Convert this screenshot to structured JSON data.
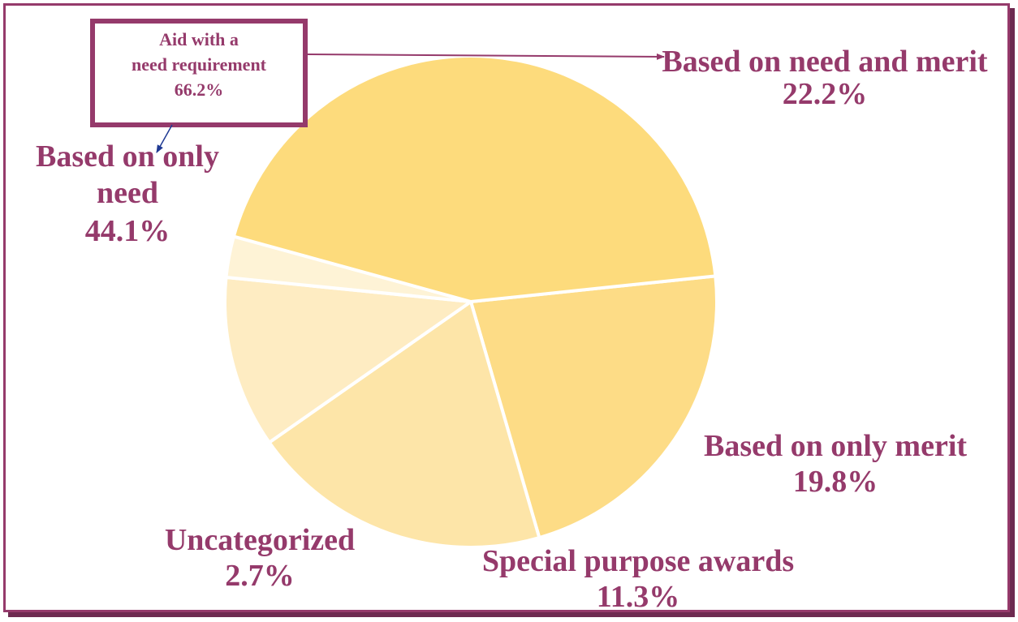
{
  "colors": {
    "frame": "#953a6b",
    "label": "#953a6b",
    "arrow_blue": "#1f3a93",
    "slice_need_merit": "#fddc86",
    "slice_merit": "#fde5a8",
    "slice_special": "#feecc2",
    "slice_uncat": "#fef3d6",
    "slice_need_only": "#fddb7c"
  },
  "chart_data": {
    "type": "pie",
    "slices": [
      {
        "name": "Based on need and merit",
        "value": 22.2,
        "label_value": "22.2%",
        "color": "#fddc86"
      },
      {
        "name": "Based on only merit",
        "value": 19.8,
        "label_value": "19.8%",
        "color": "#fde5a8"
      },
      {
        "name": "Special purpose awards",
        "value": 11.3,
        "label_value": "11.3%",
        "color": "#feecc2"
      },
      {
        "name": "Uncategorized",
        "value": 2.7,
        "label_value": "2.7%",
        "color": "#fef3d6"
      },
      {
        "name": "Based on only need",
        "value": 44.1,
        "label_value": "44.1%",
        "color": "#fddb7c"
      }
    ],
    "annotation": {
      "line1": "Aid with a",
      "line2": "need requirement",
      "line3": "66.2%"
    },
    "labels": {
      "need_merit_name": "Based on need and merit",
      "need_merit_value": "22.2%",
      "merit_name": "Based on only merit",
      "merit_value": "19.8%",
      "special_name": "Special purpose awards",
      "special_value": "11.3%",
      "uncat_name": "Uncategorized",
      "uncat_value": "2.7%",
      "need_line1": "Based on only",
      "need_line2": "need",
      "need_value": "44.1%"
    }
  }
}
